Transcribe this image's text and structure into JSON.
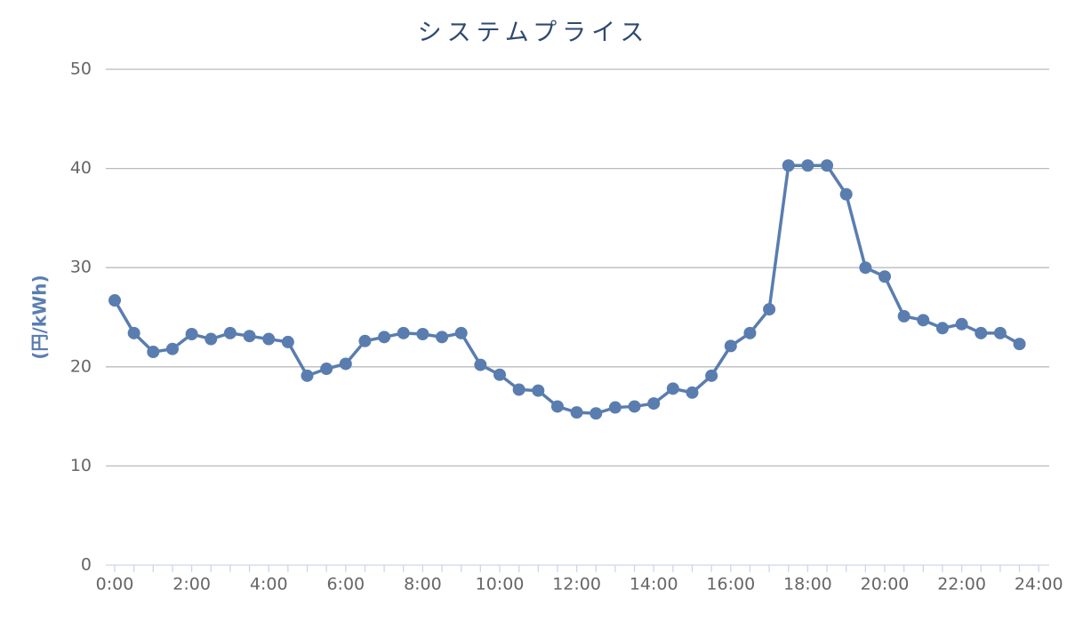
{
  "chart_data": {
    "type": "line",
    "title": "システムプライス",
    "y_label": "(円/kWh)",
    "categories": [
      "0:00",
      null,
      null,
      null,
      "2:00",
      null,
      null,
      null,
      "4:00",
      null,
      null,
      null,
      "6:00",
      null,
      null,
      null,
      "8:00",
      null,
      null,
      null,
      "10:00",
      null,
      null,
      null,
      "12:00",
      null,
      null,
      null,
      "14:00",
      null,
      null,
      null,
      "16:00",
      null,
      null,
      null,
      "18:00",
      null,
      null,
      null,
      "20:00",
      null,
      null,
      null,
      "22:00",
      null,
      null,
      null,
      "24:00"
    ],
    "series": [
      {
        "name": "システムプライス",
        "color": "#5a7db0",
        "values": [
          26.7,
          23.4,
          21.5,
          21.8,
          23.3,
          22.8,
          23.4,
          23.1,
          22.8,
          22.5,
          19.1,
          19.8,
          20.3,
          22.6,
          23.0,
          23.4,
          23.3,
          23.0,
          23.4,
          20.2,
          19.2,
          17.7,
          17.6,
          16.0,
          15.4,
          15.3,
          15.9,
          16.0,
          16.3,
          17.8,
          17.4,
          19.1,
          22.1,
          23.4,
          25.8,
          40.3,
          40.3,
          40.3,
          37.4,
          30.0,
          29.1,
          25.1,
          24.7,
          23.9,
          24.3,
          23.4,
          23.4,
          22.3,
          null
        ]
      }
    ],
    "ylim": [
      0,
      50
    ],
    "yticks": [
      0,
      10,
      20,
      30,
      40,
      50
    ],
    "grid": true
  }
}
